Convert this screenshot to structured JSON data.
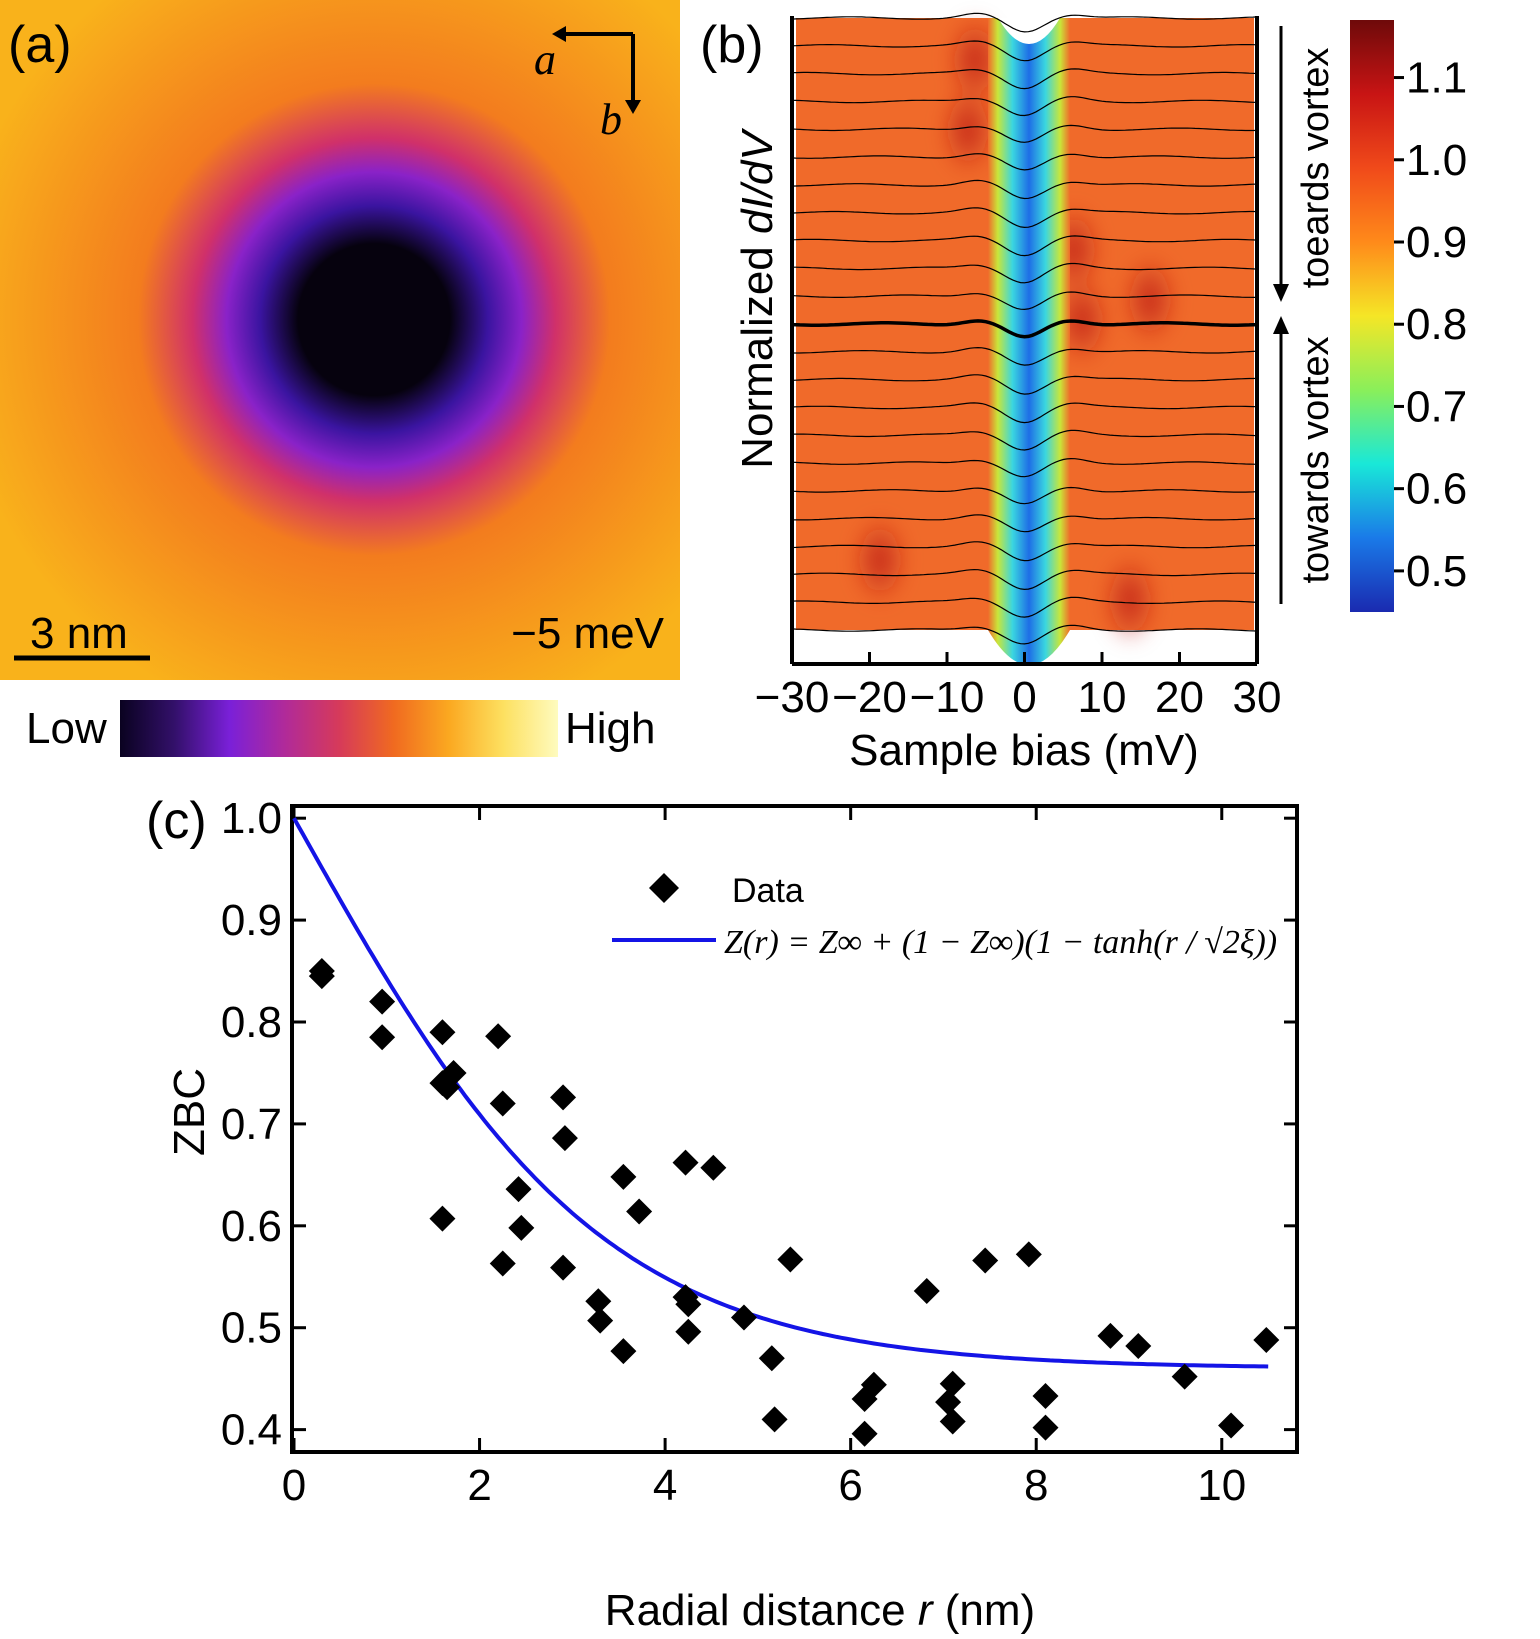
{
  "panel_a": {
    "label": "(a)",
    "axis_a": "a",
    "axis_b": "b",
    "scalebar": "3 nm",
    "energy": "−5 meV",
    "colorbar_low": "Low",
    "colorbar_high": "High",
    "colorbar_colors": [
      "#0a0220",
      "#33106a",
      "#7a20d8",
      "#b02a9a",
      "#d63a5a",
      "#f06a20",
      "#fba820",
      "#fde060",
      "#fefbbe"
    ],
    "map_colors": {
      "core": "#06020e",
      "ring_inner": "#3a14a0",
      "ring_mid": "#8a22c8",
      "ring_outer": "#d0306a",
      "halo": "#f37c1e",
      "background": "#f9b21b"
    }
  },
  "panel_b": {
    "label": "(b)",
    "ylabel_prefix": "Normalized ",
    "ylabel_italic": "dI/dV",
    "xlabel": "Sample bias (mV)",
    "upper_annotation": "toeards vortex",
    "lower_annotation": "towards vortex",
    "colorbar_ticks": [
      "1.1",
      "1.0",
      "0.9",
      "0.8",
      "0.7",
      "0.6",
      "0.5"
    ],
    "colorbar_colors": [
      "#6e0a0a",
      "#c81414",
      "#f04a1a",
      "#ff8a1a",
      "#f5e626",
      "#8aef5a",
      "#19e8d8",
      "#1a7ae8",
      "#1a2ab0"
    ],
    "map_colors": {
      "background": "#f06a2a",
      "dark_spot": "#b81818",
      "gap_blue": "#1e6ee6",
      "gap_cyan": "#3ad6e0",
      "gap_edge": "#c8e63a"
    }
  },
  "chart_data": [
    {
      "type": "heatmap",
      "panel": "(b)",
      "xlabel": "Sample bias (mV)",
      "ylabel": "Normalized dI/dV",
      "xlim": [
        -30,
        30
      ],
      "x_ticks": [
        -30,
        -20,
        -10,
        0,
        10,
        20,
        30
      ],
      "x_tick_labels": [
        "−30",
        "−20",
        "−10",
        "0",
        "10",
        "20",
        "30"
      ],
      "colorbar_range": [
        0.45,
        1.17
      ],
      "n_spectra": 23,
      "highlighted_spectrum_index": 11,
      "gap_center_mV": 0,
      "coherence_peaks_mV": [
        -6,
        6
      ]
    },
    {
      "type": "scatter",
      "panel": "(c)",
      "label": "(c)",
      "xlabel_prefix": "Radial distance ",
      "xlabel_italic": "r",
      "xlabel_suffix": " (nm)",
      "ylabel": "ZBC",
      "xlim": [
        0,
        10.8
      ],
      "ylim": [
        0.38,
        1.01
      ],
      "x_ticks": [
        0,
        2,
        4,
        6,
        8,
        10
      ],
      "y_ticks": [
        0.4,
        0.5,
        0.6,
        0.7,
        0.8,
        0.9,
        1.0
      ],
      "y_tick_labels": [
        "0.4",
        "0.5",
        "0.6",
        "0.7",
        "0.8",
        "0.9",
        "1.0"
      ],
      "legend": {
        "data_label": "Data",
        "fit_label": "Z(r) = Z∞ + (1 − Z∞)(1 − tanh(r / √2ξ))"
      },
      "data": [
        [
          0.3,
          0.85
        ],
        [
          0.3,
          0.845
        ],
        [
          0.95,
          0.82
        ],
        [
          0.95,
          0.785
        ],
        [
          1.6,
          0.79
        ],
        [
          1.6,
          0.74
        ],
        [
          1.6,
          0.607
        ],
        [
          1.65,
          0.736
        ],
        [
          1.72,
          0.75
        ],
        [
          2.2,
          0.786
        ],
        [
          2.25,
          0.72
        ],
        [
          2.25,
          0.563
        ],
        [
          2.42,
          0.636
        ],
        [
          2.45,
          0.598
        ],
        [
          2.9,
          0.726
        ],
        [
          2.92,
          0.686
        ],
        [
          2.9,
          0.559
        ],
        [
          3.28,
          0.526
        ],
        [
          3.3,
          0.507
        ],
        [
          3.55,
          0.648
        ],
        [
          3.55,
          0.477
        ],
        [
          3.72,
          0.614
        ],
        [
          4.22,
          0.662
        ],
        [
          4.22,
          0.53
        ],
        [
          4.25,
          0.523
        ],
        [
          4.25,
          0.496
        ],
        [
          4.52,
          0.657
        ],
        [
          4.85,
          0.51
        ],
        [
          5.15,
          0.47
        ],
        [
          5.18,
          0.41
        ],
        [
          5.35,
          0.567
        ],
        [
          6.15,
          0.43
        ],
        [
          6.15,
          0.396
        ],
        [
          6.25,
          0.444
        ],
        [
          6.82,
          0.536
        ],
        [
          7.05,
          0.427
        ],
        [
          7.1,
          0.445
        ],
        [
          7.1,
          0.408
        ],
        [
          7.45,
          0.566
        ],
        [
          7.92,
          0.572
        ],
        [
          8.1,
          0.433
        ],
        [
          8.1,
          0.402
        ],
        [
          8.8,
          0.492
        ],
        [
          9.1,
          0.482
        ],
        [
          9.6,
          0.452
        ],
        [
          10.1,
          0.404
        ],
        [
          10.48,
          0.488
        ]
      ],
      "fit": {
        "z_inf": 0.46,
        "xi_nm": 2.35,
        "x_range": [
          0,
          10.5
        ],
        "color": "#1414e6"
      }
    }
  ]
}
